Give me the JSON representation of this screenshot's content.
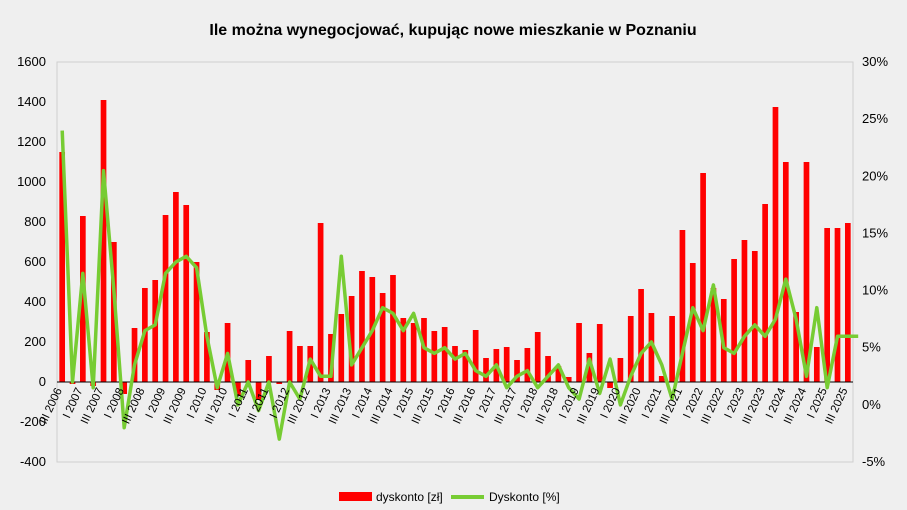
{
  "chart_data": {
    "type": "bar",
    "title": "Ile można wynegocjować, kupując nowe mieszkanie w Poznaniu",
    "x_tick_labels": [
      "III 2006",
      "I 2007",
      "III 2007",
      "I 2008",
      "III 2008",
      "I 2009",
      "III 2009",
      "I 2010",
      "III 2010",
      "I 2011",
      "III 2011",
      "I 2012",
      "III 2012",
      "I 2013",
      "III 2013",
      "I 2014",
      "III 2014",
      "I 2015",
      "III 2015",
      "I 2016",
      "III 2016",
      "I 2017",
      "III 2017",
      "I 2018",
      "III 2018",
      "I 2019",
      "III 2019",
      "I 2020",
      "III 2020",
      "I 2021",
      "III 2021",
      "I 2022",
      "III 2022",
      "I 2023",
      "III 2023",
      "I 2024",
      "III 2024",
      "I 2025",
      "III 2025"
    ],
    "y_left": {
      "ylim": [
        -400,
        1600
      ],
      "ticks": [
        "-400",
        "-200",
        "0",
        "200",
        "400",
        "600",
        "800",
        "1000",
        "1200",
        "1400",
        "1600"
      ]
    },
    "y_right": {
      "ylim": [
        -5,
        30
      ],
      "ticks": [
        "-5%",
        "0%",
        "5%",
        "10%",
        "15%",
        "20%",
        "25%",
        "30%"
      ]
    },
    "grid": false,
    "legend_position": "bottom",
    "series": [
      {
        "name": "dyskonto [zł]",
        "kind": "bar",
        "axis": "left",
        "color": "#ff0000",
        "values": [
          1150,
          -10,
          830,
          -20,
          1410,
          700,
          -60,
          270,
          470,
          510,
          835,
          950,
          885,
          600,
          250,
          -40,
          295,
          -70,
          110,
          -90,
          130,
          -10,
          255,
          180,
          180,
          795,
          240,
          340,
          430,
          555,
          525,
          445,
          535,
          320,
          295,
          320,
          255,
          275,
          180,
          160,
          260,
          120,
          165,
          175,
          110,
          170,
          250,
          130,
          80,
          25,
          295,
          145,
          290,
          -30,
          120,
          330,
          465,
          345,
          30,
          330,
          760,
          595,
          1045,
          470,
          415,
          615,
          710,
          655,
          890,
          1375,
          1100,
          350,
          1100,
          175,
          770,
          770,
          795
        ]
      },
      {
        "name": "Dyskonto [%]",
        "kind": "line",
        "axis": "right",
        "color": "#77cc33",
        "values": [
          24,
          2,
          11.5,
          1.5,
          20.5,
          10,
          -2,
          3.5,
          6.5,
          7,
          11.5,
          12.5,
          13,
          12,
          6,
          1.5,
          4.5,
          0,
          2,
          -0.5,
          2,
          -3,
          2,
          0.5,
          4,
          2.5,
          2.5,
          13,
          3.5,
          5,
          6.5,
          8.5,
          8,
          6.5,
          8,
          5,
          4.5,
          5,
          4,
          4.5,
          3,
          2.5,
          3.5,
          1.5,
          2.5,
          3,
          1.5,
          2.5,
          3.5,
          1.5,
          0.5,
          4,
          1,
          4,
          0,
          2.5,
          4.5,
          5.5,
          3.5,
          0.5,
          4.5,
          8.5,
          6.5,
          10.5,
          5,
          4.5,
          6,
          7,
          6,
          7.5,
          11,
          7.5,
          2.5,
          8.5,
          1.5,
          6,
          6,
          6
        ]
      }
    ]
  }
}
